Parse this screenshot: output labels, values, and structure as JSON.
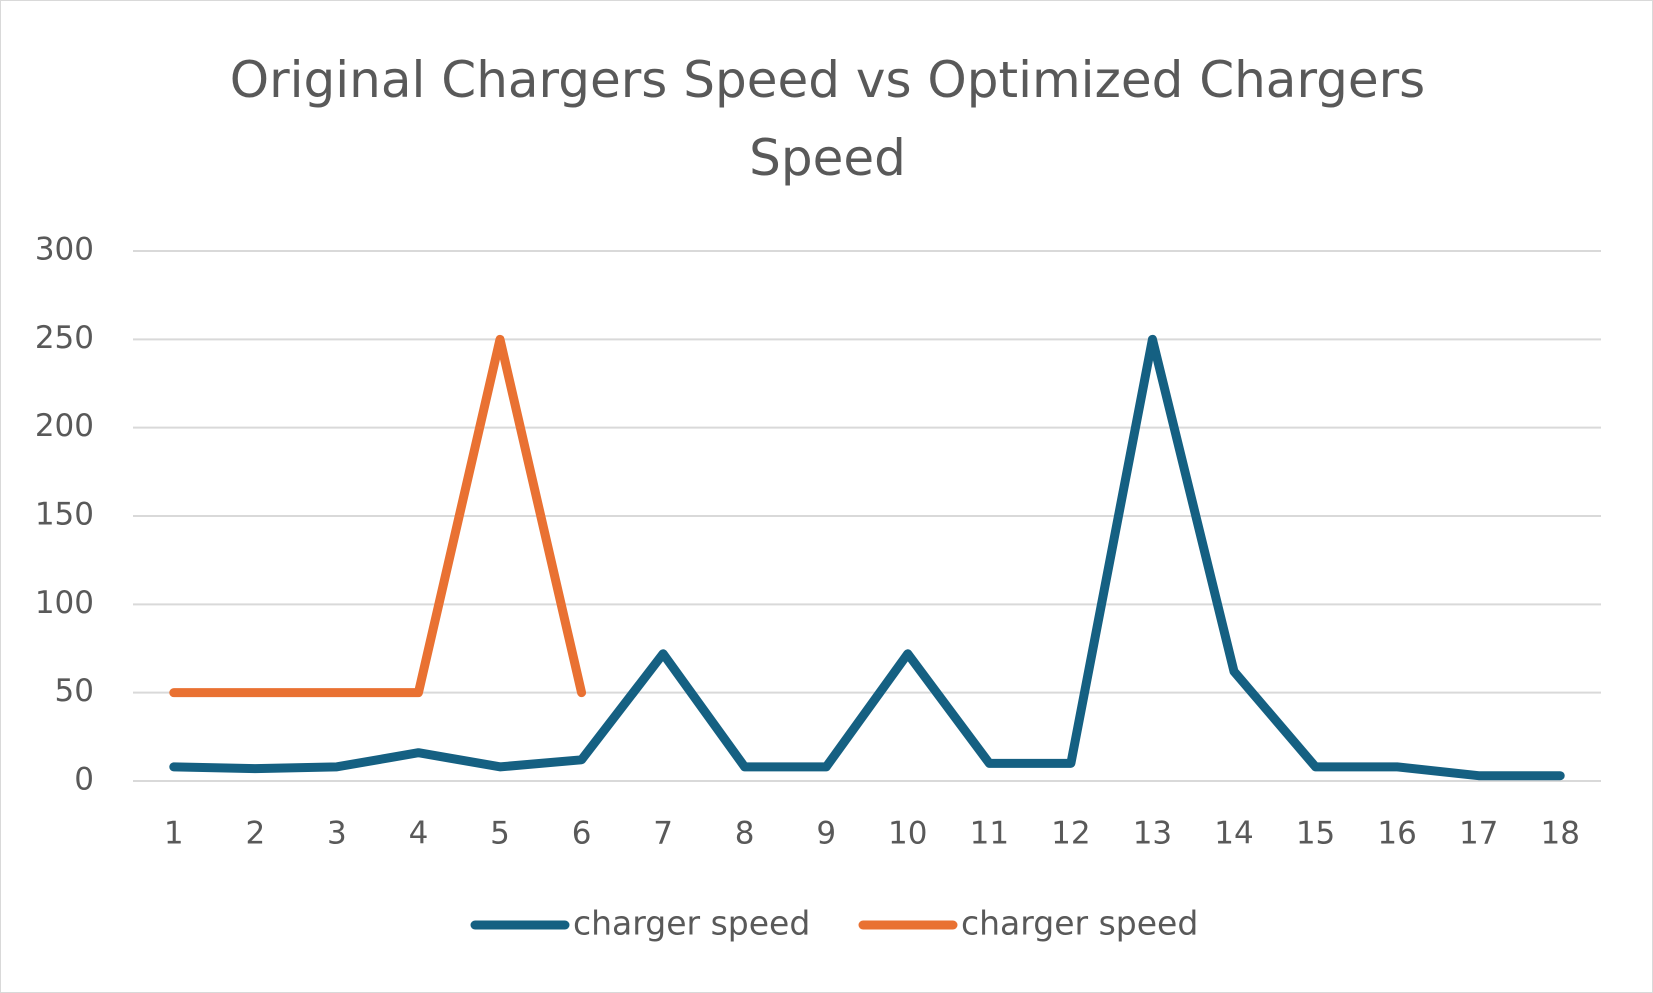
{
  "chart_data": {
    "type": "line",
    "title": "Original Chargers Speed vs Optimized Chargers Speed",
    "categories": [
      "1",
      "2",
      "3",
      "4",
      "5",
      "6",
      "7",
      "8",
      "9",
      "10",
      "11",
      "12",
      "13",
      "14",
      "15",
      "16",
      "17",
      "18"
    ],
    "series": [
      {
        "name": "charger speed",
        "color": "#156082",
        "values": [
          8,
          7,
          8,
          16,
          8,
          12,
          72,
          8,
          8,
          72,
          10,
          10,
          250,
          62,
          8,
          8,
          3,
          3
        ]
      },
      {
        "name": "charger speed",
        "color": "#e97132",
        "values": [
          50,
          50,
          50,
          50,
          250,
          50,
          null,
          null,
          null,
          null,
          null,
          null,
          null,
          null,
          null,
          null,
          null,
          null
        ]
      }
    ],
    "ylim": [
      0,
      300
    ],
    "yticks": [
      0,
      50,
      100,
      150,
      200,
      250,
      300
    ],
    "grid": true,
    "legend": "bottom"
  }
}
